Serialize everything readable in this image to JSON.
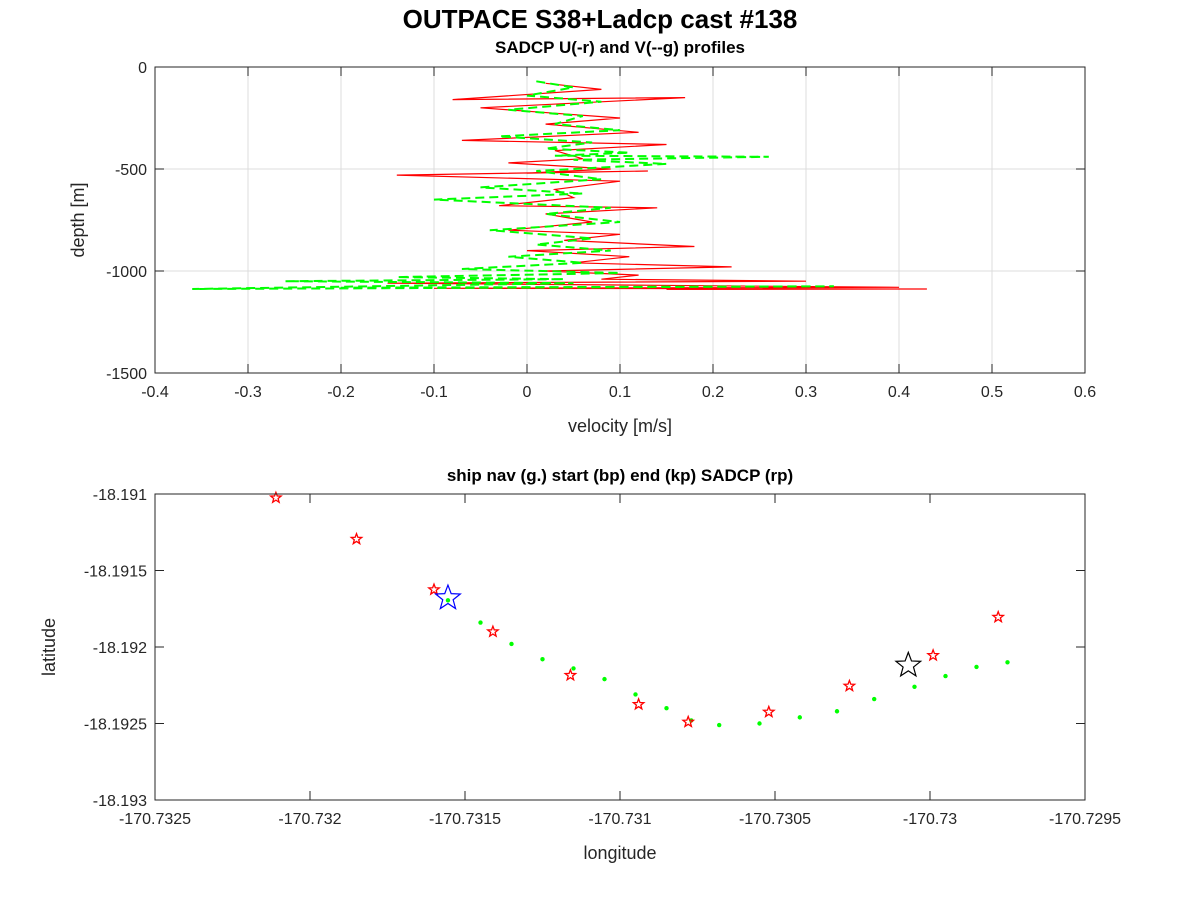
{
  "figure": {
    "title": "OUTPACE S38+Ladcp cast #138"
  },
  "chart_data": [
    {
      "type": "line",
      "title": "SADCP U(-r) and V(--g) profiles",
      "xlabel": "velocity [m/s]",
      "ylabel": "depth [m]",
      "xlim": [
        -0.4,
        0.6
      ],
      "ylim": [
        -1500,
        0
      ],
      "xticks": [
        -0.4,
        -0.3,
        -0.2,
        -0.1,
        0,
        0.1,
        0.2,
        0.3,
        0.4,
        0.5,
        0.6
      ],
      "xtick_labels": [
        "-0.4",
        "-0.3",
        "-0.2",
        "-0.1",
        "0",
        "0.1",
        "0.2",
        "0.3",
        "0.4",
        "0.5",
        "0.6"
      ],
      "yticks": [
        -1500,
        -1000,
        -500,
        0
      ],
      "ytick_labels": [
        "-1500",
        "-1000",
        "-500",
        "0"
      ],
      "grid": true,
      "series": [
        {
          "style": "solid",
          "color": "#ff0000",
          "x": [
            0.02,
            0.08,
            -0.08,
            0.17,
            -0.05,
            0.1,
            0.02,
            0.12,
            -0.07,
            0.15,
            0.03,
            0.06,
            -0.02,
            0.09,
            0.0,
            0.13,
            -0.14,
            0.1,
            0.03,
            0.05,
            -0.03,
            0.14,
            0.02,
            0.07,
            -0.02,
            0.1,
            0.04,
            0.18,
            0.0,
            0.11,
            0.05,
            0.22,
            0.02,
            0.12,
            0.08,
            0.3,
            -0.15,
            0.14,
            0.4,
            -0.1,
            0.43,
            0.15
          ],
          "y": [
            -80,
            -110,
            -160,
            -150,
            -200,
            -250,
            -280,
            -320,
            -360,
            -380,
            -410,
            -450,
            -470,
            -500,
            -520,
            -510,
            -530,
            -560,
            -600,
            -640,
            -680,
            -690,
            -720,
            -760,
            -800,
            -820,
            -850,
            -880,
            -900,
            -930,
            -960,
            -980,
            -1000,
            -1020,
            -1040,
            -1050,
            -1060,
            -1070,
            -1080,
            -1085,
            -1088,
            -1090
          ]
        },
        {
          "style": "dashed",
          "color": "#00ff00",
          "x": [
            0.01,
            0.05,
            0.0,
            0.08,
            -0.02,
            0.06,
            0.03,
            0.1,
            -0.03,
            0.07,
            0.02,
            0.11,
            0.03,
            0.26,
            0.05,
            0.15,
            0.01,
            0.08,
            -0.05,
            0.06,
            -0.1,
            0.09,
            0.02,
            0.1,
            -0.04,
            0.07,
            0.01,
            0.09,
            -0.02,
            0.06,
            -0.07,
            0.1,
            -0.14,
            0.04,
            -0.26,
            0.05,
            -0.36,
            0.33,
            -0.2
          ],
          "y": [
            -70,
            -100,
            -140,
            -170,
            -210,
            -240,
            -280,
            -310,
            -340,
            -370,
            -400,
            -420,
            -435,
            -440,
            -455,
            -475,
            -510,
            -550,
            -590,
            -620,
            -650,
            -690,
            -720,
            -760,
            -800,
            -840,
            -870,
            -900,
            -930,
            -960,
            -990,
            -1010,
            -1030,
            -1040,
            -1050,
            -1060,
            -1088,
            -1075,
            -1082
          ]
        }
      ]
    },
    {
      "type": "scatter",
      "title": "ship nav (g.) start (bp) end (kp) SADCP (rp)",
      "xlabel": "longitude",
      "ylabel": "latitude",
      "xlim": [
        -170.7325,
        -170.7295
      ],
      "ylim": [
        -18.193,
        -18.191
      ],
      "xticks": [
        -170.7325,
        -170.732,
        -170.7315,
        -170.731,
        -170.7305,
        -170.73,
        -170.7295
      ],
      "xtick_labels": [
        "-170.7325",
        "-170.732",
        "-170.7315",
        "-170.731",
        "-170.7305",
        "-170.73",
        "-170.7295"
      ],
      "yticks": [
        -18.193,
        -18.1925,
        -18.192,
        -18.1915,
        -18.191
      ],
      "ytick_labels": [
        "-18.193",
        "-18.1925",
        "-18.192",
        "-18.1915",
        "-18.191"
      ],
      "grid": false,
      "series": [
        {
          "marker": "dot",
          "color": "#00ff00",
          "x": [
            -170.731555,
            -170.73145,
            -170.73135,
            -170.73125,
            -170.73115,
            -170.73105,
            -170.73095,
            -170.73085,
            -170.73077,
            -170.73068,
            -170.73055,
            -170.73042,
            -170.7303,
            -170.73018,
            -170.73005,
            -170.72995,
            -170.72985,
            -170.72975
          ],
          "y": [
            -18.191695,
            -18.19184,
            -18.19198,
            -18.19208,
            -18.19214,
            -18.19221,
            -18.19231,
            -18.1924,
            -18.19248,
            -18.19251,
            -18.1925,
            -18.19246,
            -18.19242,
            -18.19234,
            -18.19226,
            -18.19219,
            -18.19213,
            -18.1921
          ]
        },
        {
          "marker": "star",
          "color": "#ff0000",
          "x": [
            -170.73211,
            -170.73185,
            -170.7316,
            -170.73141,
            -170.73116,
            -170.73094,
            -170.73078,
            -170.73052,
            -170.73026,
            -170.72999,
            -170.72978
          ],
          "y": [
            -18.191025,
            -18.191295,
            -18.191625,
            -18.1919,
            -18.192185,
            -18.192375,
            -18.19249,
            -18.192425,
            -18.192255,
            -18.192055,
            -18.191805
          ]
        },
        {
          "marker": "star-large",
          "color": "#0000ff",
          "x": [
            -170.731555
          ],
          "y": [
            -18.19168
          ]
        },
        {
          "marker": "star-large",
          "color": "#000000",
          "x": [
            -170.73007
          ],
          "y": [
            -18.19212
          ]
        }
      ]
    }
  ]
}
